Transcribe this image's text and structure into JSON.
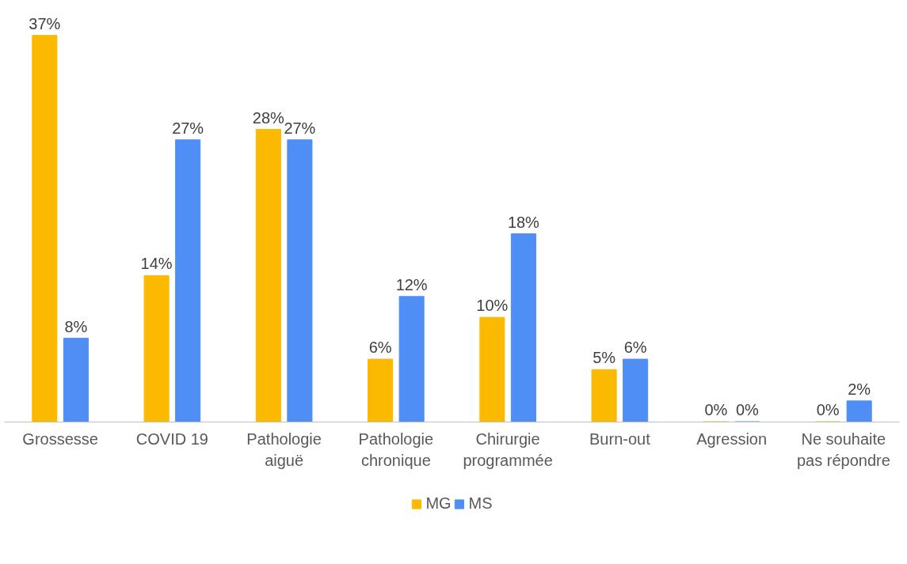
{
  "chart_data": {
    "type": "bar",
    "categories": [
      "Grossesse",
      "COVID 19",
      "Pathologie\naiguë",
      "Pathologie\nchronique",
      "Chirurgie\nprogrammée",
      "Burn-out",
      "Agression",
      "Ne souhaite\npas répondre"
    ],
    "series": [
      {
        "name": "MG",
        "color": "#fbb900",
        "values": [
          37,
          14,
          28,
          6,
          10,
          5,
          0,
          0
        ],
        "value_labels": [
          "37%",
          "14%",
          "28%",
          "6%",
          "10%",
          "5%",
          "0%",
          "0%"
        ]
      },
      {
        "name": "MS",
        "color": "#4f8ef5",
        "values": [
          8,
          27,
          27,
          12,
          18,
          6,
          0,
          2
        ],
        "value_labels": [
          "8%",
          "27%",
          "27%",
          "12%",
          "18%",
          "6%",
          "0%",
          "2%"
        ]
      }
    ],
    "legend": "bottom",
    "grid": false
  }
}
